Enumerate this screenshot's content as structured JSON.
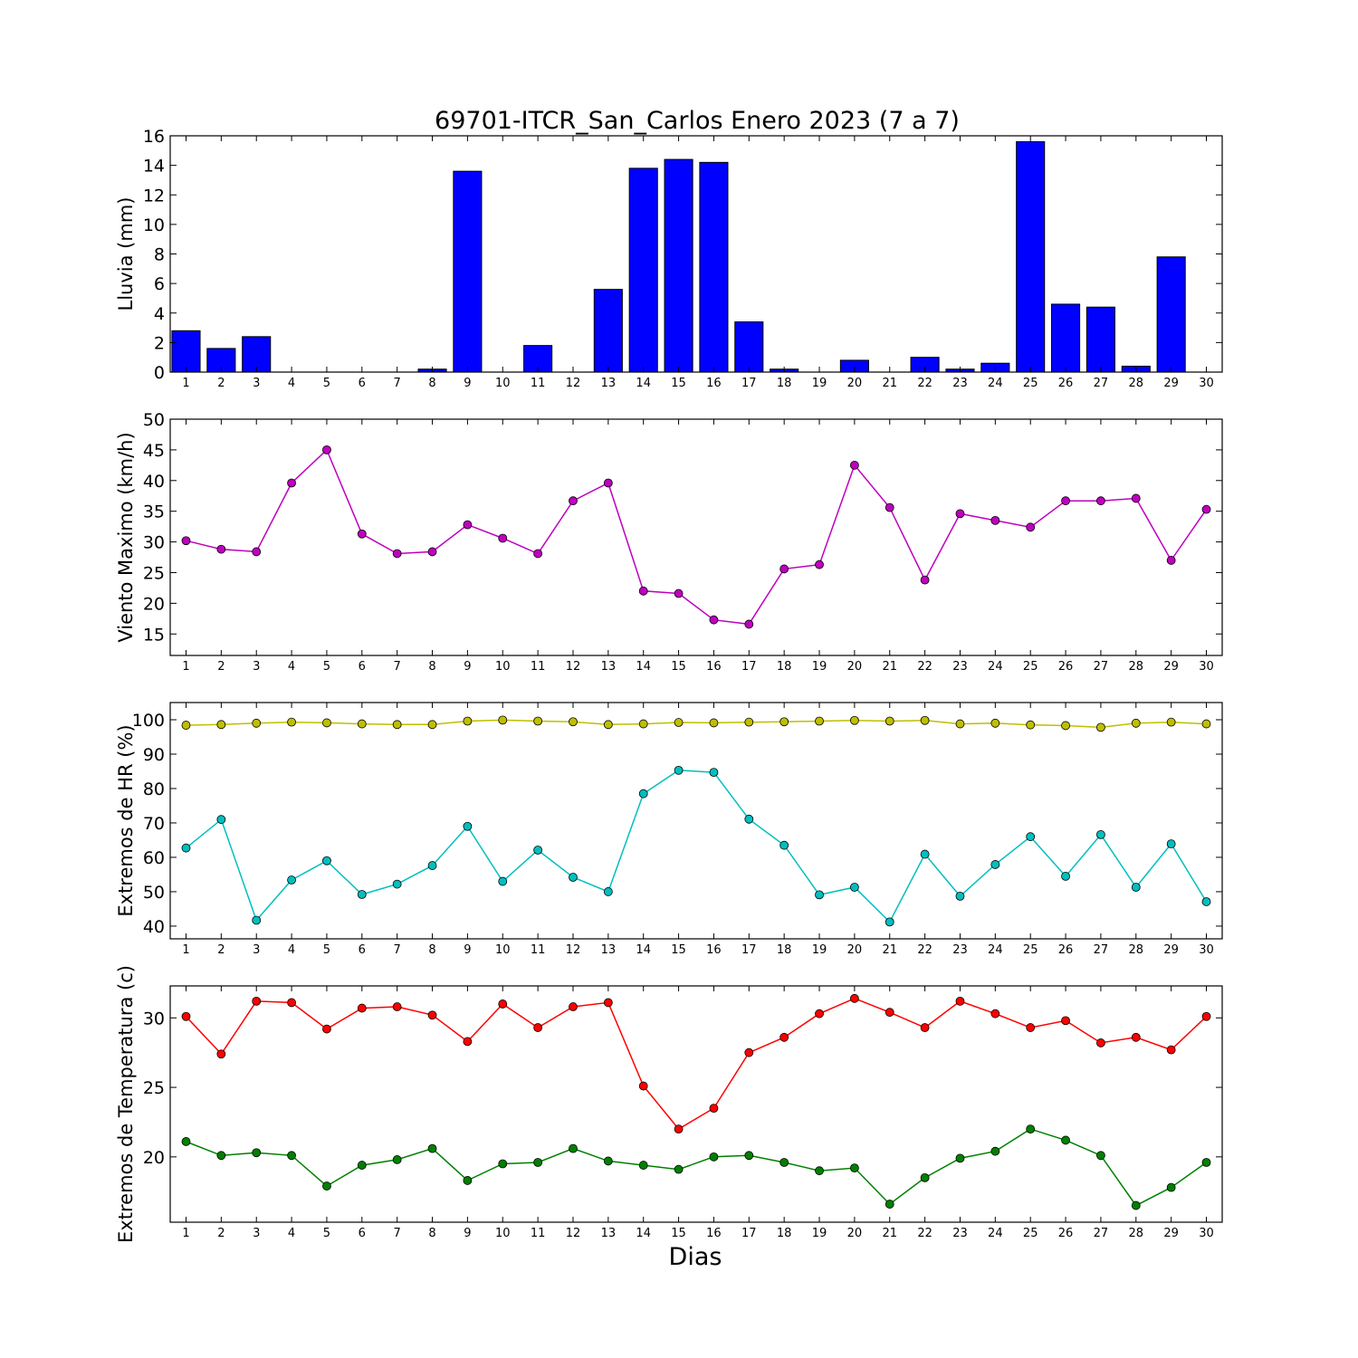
{
  "title": "69701-ITCR_San_Carlos Enero 2023  (7 a 7)",
  "xlabel": "Dias",
  "colors": {
    "rain": "#0000ff",
    "wind": "#bf00bf",
    "hr_max": "#bfbf00",
    "hr_min": "#00bfbf",
    "temp_max": "#ff0000",
    "temp_min": "#008000"
  },
  "chart_data": [
    {
      "type": "bar",
      "ylabel": "Lluvia (mm)",
      "ylim": [
        0,
        16
      ],
      "yticks": [
        0,
        2,
        4,
        6,
        8,
        10,
        12,
        14,
        16
      ],
      "categories": [
        1,
        2,
        3,
        4,
        5,
        6,
        7,
        8,
        9,
        10,
        11,
        12,
        13,
        14,
        15,
        16,
        17,
        18,
        19,
        20,
        21,
        22,
        23,
        24,
        25,
        26,
        27,
        28,
        29,
        30
      ],
      "series": [
        {
          "values": [
            2.8,
            1.6,
            2.4,
            0,
            0,
            0,
            0,
            0.2,
            13.6,
            0,
            1.8,
            0,
            5.6,
            13.8,
            14.4,
            14.2,
            3.4,
            0.2,
            0,
            0.8,
            0,
            1.0,
            0.2,
            0.6,
            15.6,
            4.6,
            4.4,
            0.4,
            7.8,
            0
          ]
        }
      ]
    },
    {
      "type": "line",
      "ylabel": "Viento Maximo (km/h)",
      "ylim": [
        11.5,
        50
      ],
      "yticks": [
        15,
        20,
        25,
        30,
        35,
        40,
        45,
        50
      ],
      "categories": [
        1,
        2,
        3,
        4,
        5,
        6,
        7,
        8,
        9,
        10,
        11,
        12,
        13,
        14,
        15,
        16,
        17,
        18,
        19,
        20,
        21,
        22,
        23,
        24,
        25,
        26,
        27,
        28,
        29,
        30
      ],
      "series": [
        {
          "values": [
            30.2,
            28.8,
            28.4,
            39.6,
            45.0,
            31.3,
            28.1,
            28.4,
            32.8,
            30.6,
            28.1,
            36.7,
            39.6,
            22.0,
            21.6,
            17.3,
            16.6,
            25.6,
            26.3,
            42.5,
            35.6,
            23.8,
            34.6,
            33.5,
            32.4,
            36.7,
            36.7,
            37.1,
            27.0,
            35.3
          ]
        }
      ]
    },
    {
      "type": "line",
      "ylabel": "Extremos de HR (%)",
      "ylim": [
        36.3,
        105
      ],
      "yticks": [
        40,
        50,
        60,
        70,
        80,
        90,
        100
      ],
      "categories": [
        1,
        2,
        3,
        4,
        5,
        6,
        7,
        8,
        9,
        10,
        11,
        12,
        13,
        14,
        15,
        16,
        17,
        18,
        19,
        20,
        21,
        22,
        23,
        24,
        25,
        26,
        27,
        28,
        29,
        30
      ],
      "series": [
        {
          "values": [
            98.4,
            98.6,
            99.0,
            99.3,
            99.1,
            98.8,
            98.6,
            98.6,
            99.6,
            99.9,
            99.6,
            99.4,
            98.6,
            98.8,
            99.2,
            99.1,
            99.3,
            99.4,
            99.6,
            99.8,
            99.6,
            99.8,
            98.8,
            99.0,
            98.5,
            98.3,
            97.8,
            99.0,
            99.3,
            98.8
          ]
        },
        {
          "values": [
            62.7,
            71.0,
            41.7,
            53.4,
            59.0,
            49.2,
            52.2,
            57.6,
            69.0,
            53.0,
            62.1,
            54.2,
            50.0,
            78.5,
            85.3,
            84.7,
            71.1,
            63.5,
            49.1,
            51.3,
            41.2,
            60.9,
            48.7,
            57.9,
            66.0,
            54.5,
            66.6,
            51.3,
            63.9,
            47.1
          ]
        }
      ]
    },
    {
      "type": "line",
      "ylabel": "Extremos de Temperatura (c)",
      "ylim": [
        15.3,
        32.3
      ],
      "yticks": [
        20,
        25,
        30
      ],
      "categories": [
        1,
        2,
        3,
        4,
        5,
        6,
        7,
        8,
        9,
        10,
        11,
        12,
        13,
        14,
        15,
        16,
        17,
        18,
        19,
        20,
        21,
        22,
        23,
        24,
        25,
        26,
        27,
        28,
        29,
        30
      ],
      "series": [
        {
          "values": [
            30.1,
            27.4,
            31.2,
            31.1,
            29.2,
            30.7,
            30.8,
            30.2,
            28.3,
            31.0,
            29.3,
            30.8,
            31.1,
            25.1,
            22.0,
            23.5,
            27.5,
            28.6,
            30.3,
            31.4,
            30.4,
            29.3,
            31.2,
            30.3,
            29.3,
            29.8,
            28.2,
            28.6,
            27.7,
            30.1
          ]
        },
        {
          "values": [
            21.1,
            20.1,
            20.3,
            20.1,
            17.9,
            19.4,
            19.8,
            20.6,
            18.3,
            19.5,
            19.6,
            20.6,
            19.7,
            19.4,
            19.1,
            20.0,
            20.1,
            19.6,
            19.0,
            19.2,
            16.6,
            18.5,
            19.9,
            20.4,
            22.0,
            21.2,
            20.1,
            16.5,
            17.8,
            19.6
          ]
        }
      ]
    }
  ]
}
